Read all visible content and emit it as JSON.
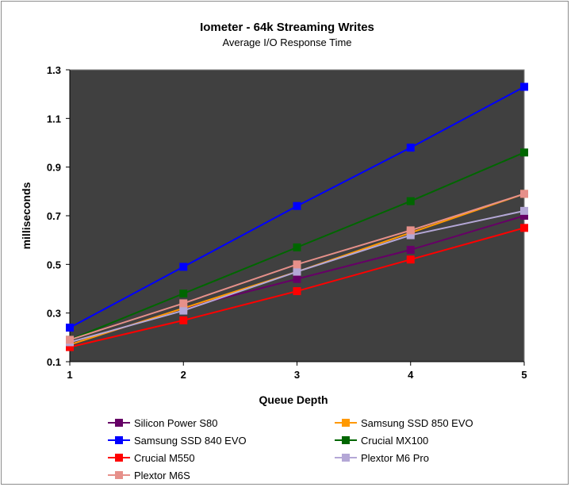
{
  "chart_data": {
    "type": "line",
    "title": "Iometer - 64k Streaming Writes",
    "subtitle": "Average I/O Response Time",
    "xlabel": "Queue Depth",
    "ylabel": "milliseconds",
    "x": [
      1,
      2,
      3,
      4,
      5
    ],
    "x_tick_labels": [
      "1",
      "2",
      "3",
      "4",
      "5"
    ],
    "ylim": [
      0.1,
      1.3
    ],
    "y_ticks": [
      0.1,
      0.3,
      0.5,
      0.7,
      0.9,
      1.1,
      1.3
    ],
    "y_tick_labels": [
      "0.1",
      "0.3",
      "0.5",
      "0.7",
      "0.9",
      "1.1",
      "1.3"
    ],
    "plot_background": "#404040",
    "grid": false,
    "legend_position": "bottom",
    "series": [
      {
        "name": "Silicon Power S80",
        "color": "#660066",
        "values": [
          0.17,
          0.32,
          0.44,
          0.56,
          0.7
        ]
      },
      {
        "name": "Samsung SSD 850 EVO",
        "color": "#ff9900",
        "values": [
          0.17,
          0.32,
          0.47,
          0.63,
          0.79
        ]
      },
      {
        "name": "Samsung SSD 840 EVO",
        "color": "#0000ff",
        "values": [
          0.24,
          0.49,
          0.74,
          0.98,
          1.23
        ]
      },
      {
        "name": "Crucial MX100",
        "color": "#006600",
        "values": [
          0.19,
          0.38,
          0.57,
          0.76,
          0.96
        ]
      },
      {
        "name": "Crucial M550",
        "color": "#ff0000",
        "values": [
          0.16,
          0.27,
          0.39,
          0.52,
          0.65
        ]
      },
      {
        "name": "Plextor M6 Pro",
        "color": "#b4a7d6",
        "values": [
          0.18,
          0.31,
          0.47,
          0.62,
          0.72
        ]
      },
      {
        "name": "Plextor M6S",
        "color": "#e6908a",
        "values": [
          0.19,
          0.34,
          0.5,
          0.64,
          0.79
        ]
      }
    ]
  }
}
